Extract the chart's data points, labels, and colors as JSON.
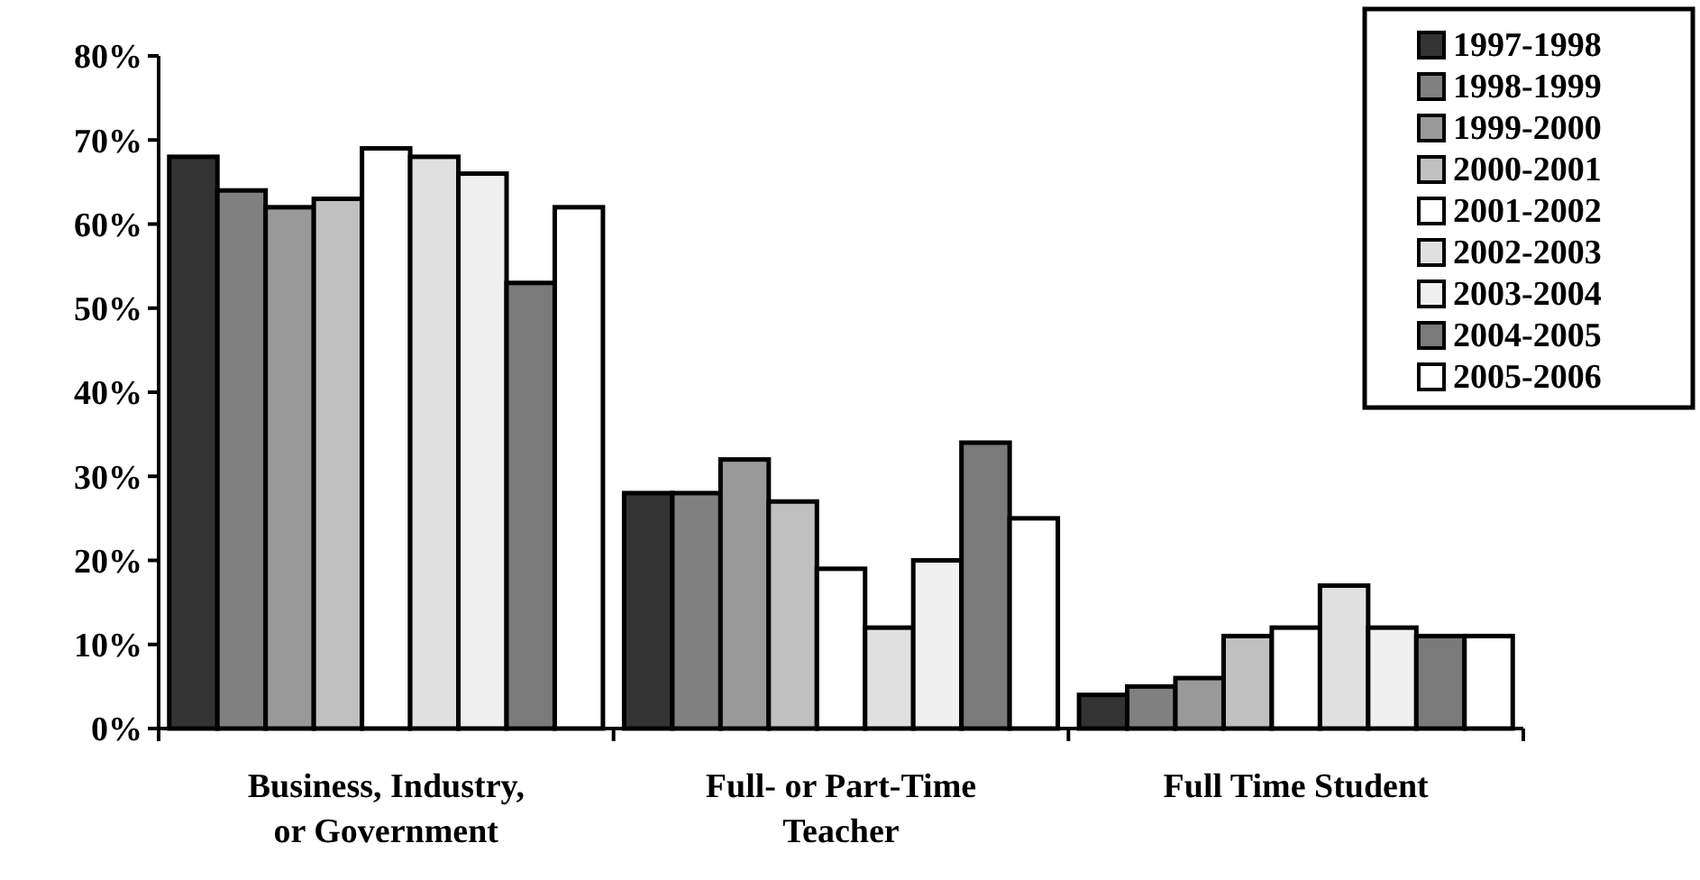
{
  "chart_data": {
    "type": "bar",
    "categories": [
      "Business, Industry, or Government",
      "Full- or Part-Time Teacher",
      "Full Time Student"
    ],
    "series": [
      {
        "name": "1997-1998",
        "color": "#333333",
        "values": [
          68,
          28,
          4
        ]
      },
      {
        "name": "1998-1999",
        "color": "#808080",
        "values": [
          64,
          28,
          5
        ]
      },
      {
        "name": "1999-2000",
        "color": "#999999",
        "values": [
          62,
          32,
          6
        ]
      },
      {
        "name": "2000-2001",
        "color": "#c0c0c0",
        "values": [
          63,
          27,
          11
        ]
      },
      {
        "name": "2001-2002",
        "color": "#ffffff",
        "values": [
          69,
          19,
          12
        ]
      },
      {
        "name": "2002-2003",
        "color": "#e0e0e0",
        "values": [
          68,
          12,
          17
        ]
      },
      {
        "name": "2003-2004",
        "color": "#f0f0f0",
        "values": [
          66,
          20,
          12
        ]
      },
      {
        "name": "2004-2005",
        "color": "#7a7a7a",
        "values": [
          53,
          34,
          11
        ]
      },
      {
        "name": "2005-2006",
        "color": "#ffffff",
        "values": [
          62,
          25,
          11
        ]
      }
    ],
    "ylim": [
      0,
      80
    ],
    "yticks": [
      {
        "value": 0,
        "label": "0%"
      },
      {
        "value": 10,
        "label": "10%"
      },
      {
        "value": 20,
        "label": "20%"
      },
      {
        "value": 30,
        "label": "30%"
      },
      {
        "value": 40,
        "label": "40%"
      },
      {
        "value": 50,
        "label": "50%"
      },
      {
        "value": 60,
        "label": "60%"
      },
      {
        "value": 70,
        "label": "70%"
      },
      {
        "value": 80,
        "label": "80%"
      }
    ],
    "legend": "top right"
  }
}
